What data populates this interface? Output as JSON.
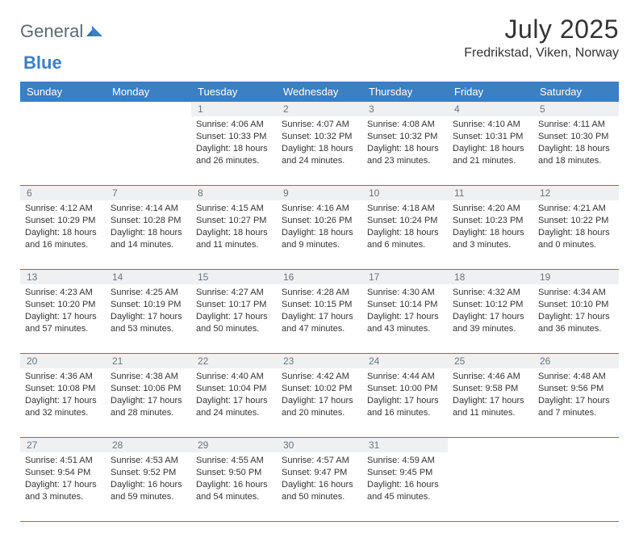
{
  "logo": {
    "part1": "General",
    "part2": "Blue"
  },
  "title": "July 2025",
  "location": "Fredrikstad, Viken, Norway",
  "colors": {
    "header_bg": "#3b7fc4",
    "header_text": "#ffffff",
    "daynum_bg": "#eef0f2",
    "daynum_text": "#6c7680",
    "body_text": "#333333",
    "row_divider": "#3b7fc4"
  },
  "weekdays": [
    "Sunday",
    "Monday",
    "Tuesday",
    "Wednesday",
    "Thursday",
    "Friday",
    "Saturday"
  ],
  "font": {
    "body_size_pt": 11,
    "header_size_pt": 13,
    "title_size_pt": 32
  },
  "weeks": [
    [
      null,
      null,
      {
        "day": "1",
        "sunrise": "Sunrise: 4:06 AM",
        "sunset": "Sunset: 10:33 PM",
        "daylight": "Daylight: 18 hours and 26 minutes."
      },
      {
        "day": "2",
        "sunrise": "Sunrise: 4:07 AM",
        "sunset": "Sunset: 10:32 PM",
        "daylight": "Daylight: 18 hours and 24 minutes."
      },
      {
        "day": "3",
        "sunrise": "Sunrise: 4:08 AM",
        "sunset": "Sunset: 10:32 PM",
        "daylight": "Daylight: 18 hours and 23 minutes."
      },
      {
        "day": "4",
        "sunrise": "Sunrise: 4:10 AM",
        "sunset": "Sunset: 10:31 PM",
        "daylight": "Daylight: 18 hours and 21 minutes."
      },
      {
        "day": "5",
        "sunrise": "Sunrise: 4:11 AM",
        "sunset": "Sunset: 10:30 PM",
        "daylight": "Daylight: 18 hours and 18 minutes."
      }
    ],
    [
      {
        "day": "6",
        "sunrise": "Sunrise: 4:12 AM",
        "sunset": "Sunset: 10:29 PM",
        "daylight": "Daylight: 18 hours and 16 minutes."
      },
      {
        "day": "7",
        "sunrise": "Sunrise: 4:14 AM",
        "sunset": "Sunset: 10:28 PM",
        "daylight": "Daylight: 18 hours and 14 minutes."
      },
      {
        "day": "8",
        "sunrise": "Sunrise: 4:15 AM",
        "sunset": "Sunset: 10:27 PM",
        "daylight": "Daylight: 18 hours and 11 minutes."
      },
      {
        "day": "9",
        "sunrise": "Sunrise: 4:16 AM",
        "sunset": "Sunset: 10:26 PM",
        "daylight": "Daylight: 18 hours and 9 minutes."
      },
      {
        "day": "10",
        "sunrise": "Sunrise: 4:18 AM",
        "sunset": "Sunset: 10:24 PM",
        "daylight": "Daylight: 18 hours and 6 minutes."
      },
      {
        "day": "11",
        "sunrise": "Sunrise: 4:20 AM",
        "sunset": "Sunset: 10:23 PM",
        "daylight": "Daylight: 18 hours and 3 minutes."
      },
      {
        "day": "12",
        "sunrise": "Sunrise: 4:21 AM",
        "sunset": "Sunset: 10:22 PM",
        "daylight": "Daylight: 18 hours and 0 minutes."
      }
    ],
    [
      {
        "day": "13",
        "sunrise": "Sunrise: 4:23 AM",
        "sunset": "Sunset: 10:20 PM",
        "daylight": "Daylight: 17 hours and 57 minutes."
      },
      {
        "day": "14",
        "sunrise": "Sunrise: 4:25 AM",
        "sunset": "Sunset: 10:19 PM",
        "daylight": "Daylight: 17 hours and 53 minutes."
      },
      {
        "day": "15",
        "sunrise": "Sunrise: 4:27 AM",
        "sunset": "Sunset: 10:17 PM",
        "daylight": "Daylight: 17 hours and 50 minutes."
      },
      {
        "day": "16",
        "sunrise": "Sunrise: 4:28 AM",
        "sunset": "Sunset: 10:15 PM",
        "daylight": "Daylight: 17 hours and 47 minutes."
      },
      {
        "day": "17",
        "sunrise": "Sunrise: 4:30 AM",
        "sunset": "Sunset: 10:14 PM",
        "daylight": "Daylight: 17 hours and 43 minutes."
      },
      {
        "day": "18",
        "sunrise": "Sunrise: 4:32 AM",
        "sunset": "Sunset: 10:12 PM",
        "daylight": "Daylight: 17 hours and 39 minutes."
      },
      {
        "day": "19",
        "sunrise": "Sunrise: 4:34 AM",
        "sunset": "Sunset: 10:10 PM",
        "daylight": "Daylight: 17 hours and 36 minutes."
      }
    ],
    [
      {
        "day": "20",
        "sunrise": "Sunrise: 4:36 AM",
        "sunset": "Sunset: 10:08 PM",
        "daylight": "Daylight: 17 hours and 32 minutes."
      },
      {
        "day": "21",
        "sunrise": "Sunrise: 4:38 AM",
        "sunset": "Sunset: 10:06 PM",
        "daylight": "Daylight: 17 hours and 28 minutes."
      },
      {
        "day": "22",
        "sunrise": "Sunrise: 4:40 AM",
        "sunset": "Sunset: 10:04 PM",
        "daylight": "Daylight: 17 hours and 24 minutes."
      },
      {
        "day": "23",
        "sunrise": "Sunrise: 4:42 AM",
        "sunset": "Sunset: 10:02 PM",
        "daylight": "Daylight: 17 hours and 20 minutes."
      },
      {
        "day": "24",
        "sunrise": "Sunrise: 4:44 AM",
        "sunset": "Sunset: 10:00 PM",
        "daylight": "Daylight: 17 hours and 16 minutes."
      },
      {
        "day": "25",
        "sunrise": "Sunrise: 4:46 AM",
        "sunset": "Sunset: 9:58 PM",
        "daylight": "Daylight: 17 hours and 11 minutes."
      },
      {
        "day": "26",
        "sunrise": "Sunrise: 4:48 AM",
        "sunset": "Sunset: 9:56 PM",
        "daylight": "Daylight: 17 hours and 7 minutes."
      }
    ],
    [
      {
        "day": "27",
        "sunrise": "Sunrise: 4:51 AM",
        "sunset": "Sunset: 9:54 PM",
        "daylight": "Daylight: 17 hours and 3 minutes."
      },
      {
        "day": "28",
        "sunrise": "Sunrise: 4:53 AM",
        "sunset": "Sunset: 9:52 PM",
        "daylight": "Daylight: 16 hours and 59 minutes."
      },
      {
        "day": "29",
        "sunrise": "Sunrise: 4:55 AM",
        "sunset": "Sunset: 9:50 PM",
        "daylight": "Daylight: 16 hours and 54 minutes."
      },
      {
        "day": "30",
        "sunrise": "Sunrise: 4:57 AM",
        "sunset": "Sunset: 9:47 PM",
        "daylight": "Daylight: 16 hours and 50 minutes."
      },
      {
        "day": "31",
        "sunrise": "Sunrise: 4:59 AM",
        "sunset": "Sunset: 9:45 PM",
        "daylight": "Daylight: 16 hours and 45 minutes."
      },
      null,
      null
    ]
  ]
}
